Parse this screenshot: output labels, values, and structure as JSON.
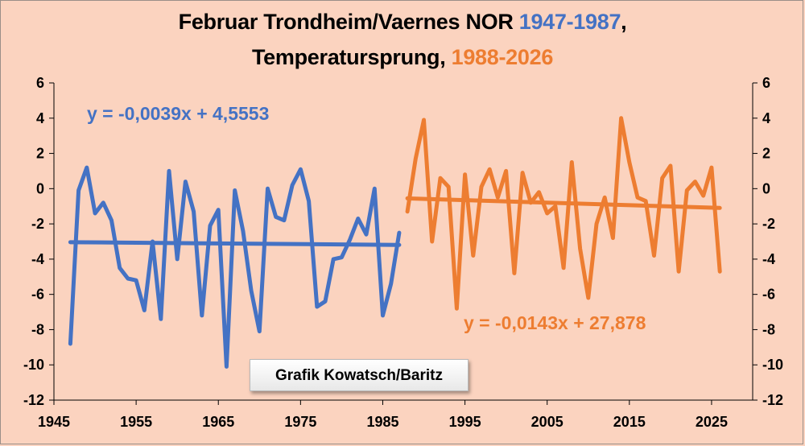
{
  "title": {
    "line1_prefix": "Februar Trondheim/Vaernes NOR ",
    "line1_highlight": "1947-1987",
    "line1_suffix": ",",
    "line2_prefix": "Temperatursprung, ",
    "line2_highlight": "1988-2026"
  },
  "credit": "Grafik Kowatsch/Baritz",
  "colors": {
    "background": "#fbd3bf",
    "series_1": "#4472c4",
    "series_2": "#ed7d31",
    "axis": "#000000"
  },
  "chart_data": {
    "type": "line",
    "xlim": [
      1945,
      2030
    ],
    "ylim": [
      -12,
      6
    ],
    "x_ticks": [
      1945,
      1955,
      1965,
      1975,
      1985,
      1995,
      2005,
      2015,
      2025
    ],
    "y_ticks": [
      6,
      4,
      2,
      0,
      -2,
      -4,
      -6,
      -8,
      -10,
      -12
    ],
    "grid": false,
    "secondary_y_axis": true,
    "series": [
      {
        "x": [
          1947,
          1948,
          1949,
          1950,
          1951,
          1952,
          1953,
          1954,
          1955,
          1956,
          1957,
          1958,
          1959,
          1960,
          1961,
          1962,
          1963,
          1964,
          1965,
          1966,
          1967,
          1968,
          1969,
          1970,
          1971,
          1972,
          1973,
          1974,
          1975,
          1976,
          1977,
          1978,
          1979,
          1980,
          1981,
          1982,
          1983,
          1984,
          1985,
          1986,
          1987
        ],
        "values": [
          -8.8,
          -0.1,
          1.2,
          -1.4,
          -0.8,
          -1.8,
          -4.5,
          -5.1,
          -5.2,
          -6.9,
          -3.0,
          -7.4,
          1.0,
          -4.0,
          0.4,
          -1.3,
          -7.2,
          -2.1,
          -1.2,
          -10.1,
          -0.1,
          -2.4,
          -5.8,
          -8.1,
          0.0,
          -1.6,
          -1.8,
          0.2,
          1.1,
          -0.7,
          -6.7,
          -6.4,
          -4.0,
          -3.9,
          -2.9,
          -1.7,
          -2.6,
          0.0,
          -7.2,
          -5.4,
          -2.5
        ],
        "trendline": {
          "equation": "y = -0,0039x + 4,5553",
          "slope": -0.0039,
          "intercept": 4.5553,
          "x_range": [
            1947,
            1987
          ]
        }
      },
      {
        "x": [
          1988,
          1989,
          1990,
          1991,
          1992,
          1993,
          1994,
          1995,
          1996,
          1997,
          1998,
          1999,
          2000,
          2001,
          2002,
          2003,
          2004,
          2005,
          2006,
          2007,
          2008,
          2009,
          2010,
          2011,
          2012,
          2013,
          2014,
          2015,
          2016,
          2017,
          2018,
          2019,
          2020,
          2021,
          2022,
          2023,
          2024,
          2025,
          2026
        ],
        "values": [
          -1.3,
          1.7,
          3.9,
          -3.0,
          0.6,
          0.1,
          -6.8,
          0.8,
          -3.8,
          0.1,
          1.1,
          -0.5,
          1.0,
          -4.8,
          0.9,
          -0.8,
          -0.2,
          -1.4,
          -1.0,
          -4.5,
          1.5,
          -3.4,
          -6.2,
          -2.0,
          -0.5,
          -2.8,
          4.0,
          1.5,
          -0.5,
          -0.7,
          -3.8,
          0.6,
          1.3,
          -4.7,
          -0.1,
          0.4,
          -0.4,
          1.2,
          -4.7
        ],
        "trendline": {
          "equation": "y = -0,0143x + 27,878",
          "slope": -0.0143,
          "intercept": 27.878,
          "x_range": [
            1988,
            2026
          ]
        }
      }
    ]
  }
}
